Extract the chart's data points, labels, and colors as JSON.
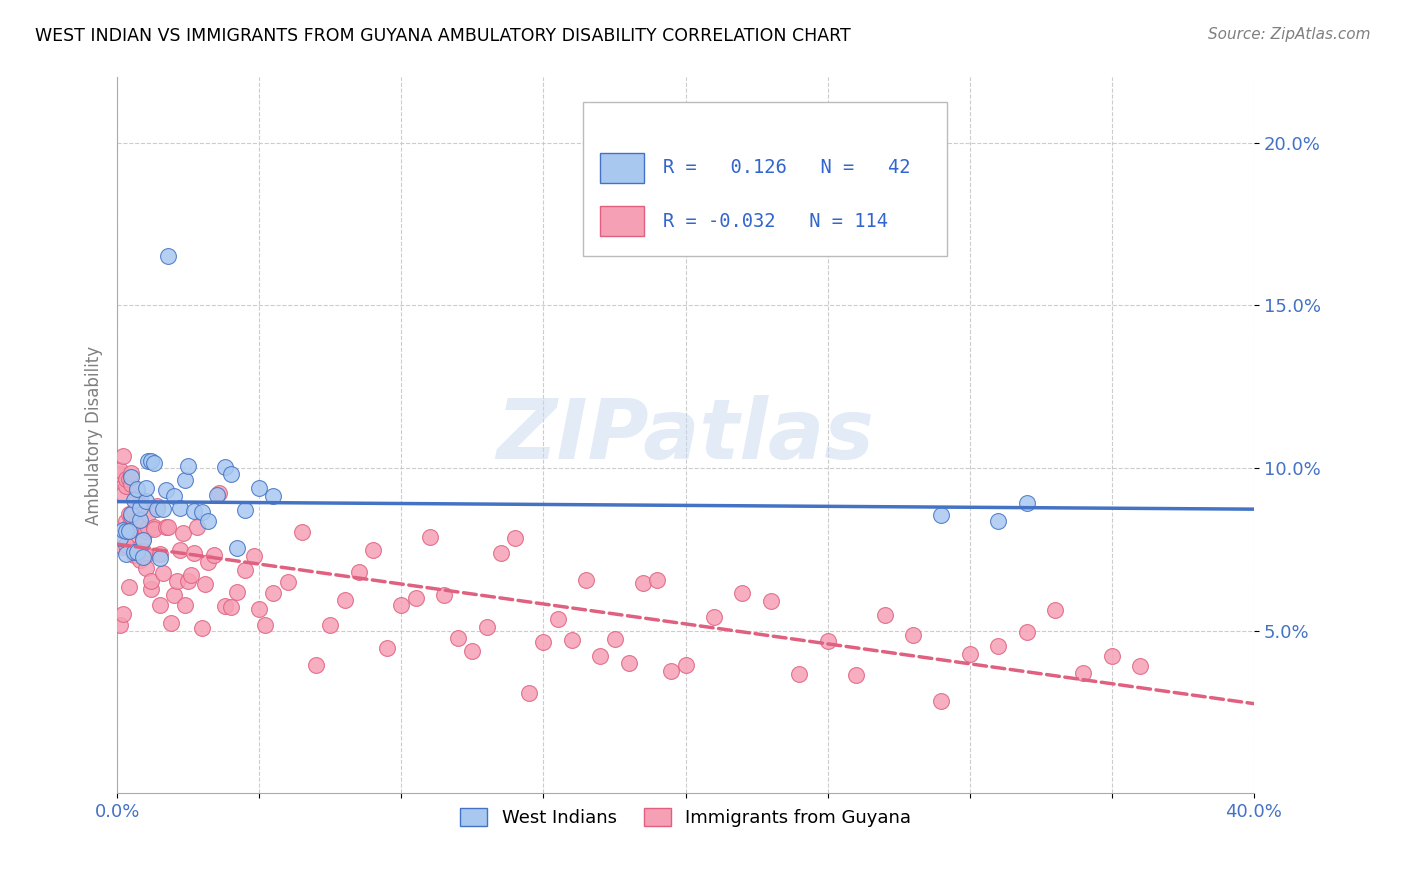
{
  "title": "WEST INDIAN VS IMMIGRANTS FROM GUYANA AMBULATORY DISABILITY CORRELATION CHART",
  "source": "Source: ZipAtlas.com",
  "ylabel": "Ambulatory Disability",
  "xlim": [
    0.0,
    0.4
  ],
  "ylim": [
    0.0,
    0.22
  ],
  "yticks": [
    0.05,
    0.1,
    0.15,
    0.2
  ],
  "ytick_labels": [
    "5.0%",
    "10.0%",
    "15.0%",
    "20.0%"
  ],
  "xticks": [
    0.0,
    0.05,
    0.1,
    0.15,
    0.2,
    0.25,
    0.3,
    0.35,
    0.4
  ],
  "xtick_labels": [
    "0.0%",
    "",
    "",
    "",
    "",
    "",
    "",
    "",
    "40.0%"
  ],
  "legend1_label": "West Indians",
  "legend2_label": "Immigrants from Guyana",
  "R1": 0.126,
  "N1": 42,
  "R2": -0.032,
  "N2": 114,
  "color_blue": "#A8C8F0",
  "color_pink": "#F5A0B5",
  "color_blue_dark": "#4472C4",
  "color_pink_dark": "#E06080",
  "watermark": "ZIPatlas",
  "west_indians_x": [
    0.001,
    0.002,
    0.003,
    0.003,
    0.004,
    0.005,
    0.005,
    0.006,
    0.006,
    0.007,
    0.007,
    0.008,
    0.008,
    0.009,
    0.009,
    0.01,
    0.01,
    0.011,
    0.012,
    0.013,
    0.014,
    0.015,
    0.016,
    0.017,
    0.018,
    0.02,
    0.022,
    0.024,
    0.025,
    0.027,
    0.03,
    0.032,
    0.035,
    0.038,
    0.04,
    0.042,
    0.045,
    0.05,
    0.055,
    0.29,
    0.31,
    0.32
  ],
  "west_indians_y": [
    0.075,
    0.08,
    0.072,
    0.09,
    0.085,
    0.095,
    0.082,
    0.078,
    0.088,
    0.092,
    0.073,
    0.086,
    0.091,
    0.076,
    0.083,
    0.089,
    0.094,
    0.096,
    0.098,
    0.1,
    0.088,
    0.085,
    0.083,
    0.088,
    0.09,
    0.092,
    0.088,
    0.09,
    0.1,
    0.095,
    0.09,
    0.088,
    0.088,
    0.092,
    0.102,
    0.082,
    0.085,
    0.1,
    0.09,
    0.09,
    0.085,
    0.088
  ],
  "guyana_x": [
    0.001,
    0.001,
    0.002,
    0.002,
    0.002,
    0.003,
    0.003,
    0.003,
    0.004,
    0.004,
    0.004,
    0.005,
    0.005,
    0.005,
    0.005,
    0.006,
    0.006,
    0.006,
    0.007,
    0.007,
    0.007,
    0.007,
    0.008,
    0.008,
    0.008,
    0.009,
    0.009,
    0.01,
    0.01,
    0.01,
    0.011,
    0.011,
    0.012,
    0.012,
    0.013,
    0.013,
    0.014,
    0.015,
    0.015,
    0.016,
    0.017,
    0.018,
    0.019,
    0.02,
    0.021,
    0.022,
    0.023,
    0.024,
    0.025,
    0.026,
    0.027,
    0.028,
    0.03,
    0.031,
    0.032,
    0.034,
    0.036,
    0.038,
    0.04,
    0.042,
    0.045,
    0.048,
    0.05,
    0.052,
    0.055,
    0.06,
    0.065,
    0.07,
    0.075,
    0.08,
    0.085,
    0.09,
    0.095,
    0.1,
    0.105,
    0.11,
    0.115,
    0.12,
    0.125,
    0.13,
    0.135,
    0.14,
    0.145,
    0.15,
    0.155,
    0.16,
    0.165,
    0.17,
    0.175,
    0.18,
    0.185,
    0.19,
    0.195,
    0.2,
    0.21,
    0.22,
    0.23,
    0.24,
    0.25,
    0.26,
    0.27,
    0.28,
    0.29,
    0.3,
    0.31,
    0.32,
    0.33,
    0.34,
    0.35,
    0.36,
    0.001,
    0.002,
    0.003,
    0.004
  ],
  "guyana_y": [
    0.09,
    0.095,
    0.085,
    0.092,
    0.1,
    0.088,
    0.093,
    0.096,
    0.082,
    0.087,
    0.094,
    0.078,
    0.083,
    0.089,
    0.097,
    0.072,
    0.08,
    0.086,
    0.075,
    0.081,
    0.087,
    0.093,
    0.07,
    0.076,
    0.082,
    0.068,
    0.074,
    0.065,
    0.071,
    0.077,
    0.083,
    0.089,
    0.062,
    0.068,
    0.074,
    0.08,
    0.086,
    0.06,
    0.066,
    0.072,
    0.078,
    0.084,
    0.058,
    0.064,
    0.07,
    0.076,
    0.082,
    0.056,
    0.062,
    0.068,
    0.074,
    0.08,
    0.054,
    0.06,
    0.066,
    0.072,
    0.078,
    0.052,
    0.058,
    0.064,
    0.07,
    0.076,
    0.05,
    0.056,
    0.062,
    0.068,
    0.074,
    0.048,
    0.054,
    0.06,
    0.066,
    0.072,
    0.046,
    0.052,
    0.058,
    0.064,
    0.07,
    0.044,
    0.05,
    0.056,
    0.062,
    0.068,
    0.042,
    0.048,
    0.054,
    0.06,
    0.066,
    0.04,
    0.046,
    0.052,
    0.058,
    0.064,
    0.038,
    0.044,
    0.05,
    0.056,
    0.062,
    0.036,
    0.042,
    0.048,
    0.054,
    0.06,
    0.034,
    0.04,
    0.046,
    0.052,
    0.058,
    0.032,
    0.038,
    0.044,
    0.05,
    0.058,
    0.062,
    0.068
  ]
}
